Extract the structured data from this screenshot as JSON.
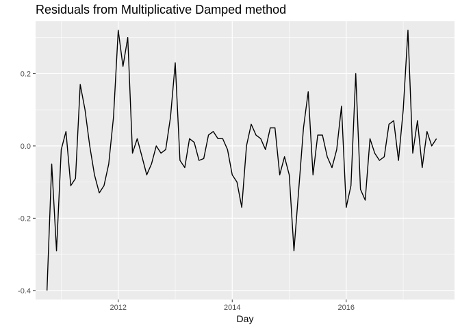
{
  "chart_data": {
    "type": "line",
    "title": "Residuals from Multiplicative Damped method",
    "xlabel": "Day",
    "ylabel": "",
    "xlim": [
      2010.55,
      2017.9
    ],
    "ylim": [
      -0.425,
      0.345
    ],
    "x_ticks": [
      {
        "value": 2012,
        "label": "2012"
      },
      {
        "value": 2014,
        "label": "2014"
      },
      {
        "value": 2016,
        "label": "2016"
      }
    ],
    "y_ticks": [
      {
        "value": -0.4,
        "label": "-0.4"
      },
      {
        "value": -0.2,
        "label": "-0.2"
      },
      {
        "value": 0.0,
        "label": "0.0"
      },
      {
        "value": 0.2,
        "label": "0.2"
      }
    ],
    "grid": true,
    "legend": "none",
    "colors": {
      "panel": "#ebebeb",
      "grid": "#ffffff",
      "line": "#000000"
    },
    "series": [
      {
        "x": [
          2010.75,
          2010.833,
          2010.917,
          2011.0,
          2011.083,
          2011.167,
          2011.25,
          2011.333,
          2011.417,
          2011.5,
          2011.583,
          2011.667,
          2011.75,
          2011.833,
          2011.917,
          2012.0,
          2012.083,
          2012.167,
          2012.25,
          2012.333,
          2012.417,
          2012.5,
          2012.583,
          2012.667,
          2012.75,
          2012.833,
          2012.917,
          2013.0,
          2013.083,
          2013.167,
          2013.25,
          2013.333,
          2013.417,
          2013.5,
          2013.583,
          2013.667,
          2013.75,
          2013.833,
          2013.917,
          2014.0,
          2014.083,
          2014.167,
          2014.25,
          2014.333,
          2014.417,
          2014.5,
          2014.583,
          2014.667,
          2014.75,
          2014.833,
          2014.917,
          2015.0,
          2015.083,
          2015.167,
          2015.25,
          2015.333,
          2015.417,
          2015.5,
          2015.583,
          2015.667,
          2015.75,
          2015.833,
          2015.917,
          2016.0,
          2016.083,
          2016.167,
          2016.25,
          2016.333,
          2016.417,
          2016.5,
          2016.583,
          2016.667,
          2016.75,
          2016.833,
          2016.917,
          2017.0,
          2017.083,
          2017.167,
          2017.25,
          2017.333,
          2017.417,
          2017.5,
          2017.583
        ],
        "values": [
          -0.4,
          -0.05,
          -0.29,
          -0.01,
          0.04,
          -0.11,
          -0.09,
          0.17,
          0.1,
          0.0,
          -0.08,
          -0.13,
          -0.11,
          -0.05,
          0.08,
          0.32,
          0.22,
          0.3,
          -0.02,
          0.02,
          -0.03,
          -0.08,
          -0.05,
          0.0,
          -0.02,
          -0.01,
          0.08,
          0.23,
          -0.04,
          -0.06,
          0.02,
          0.01,
          -0.04,
          -0.035,
          0.03,
          0.04,
          0.02,
          0.02,
          -0.01,
          -0.08,
          -0.1,
          -0.17,
          0.0,
          0.06,
          0.03,
          0.02,
          -0.01,
          0.05,
          0.05,
          -0.08,
          -0.03,
          -0.08,
          -0.29,
          -0.12,
          0.05,
          0.15,
          -0.08,
          0.03,
          0.03,
          -0.03,
          -0.06,
          -0.01,
          0.11,
          -0.17,
          -0.11,
          0.2,
          -0.12,
          -0.15,
          0.02,
          -0.02,
          -0.04,
          -0.03,
          0.06,
          0.07,
          -0.04,
          0.1,
          0.32,
          -0.02,
          0.07,
          -0.06,
          0.04,
          0.0,
          0.02
        ]
      }
    ]
  }
}
